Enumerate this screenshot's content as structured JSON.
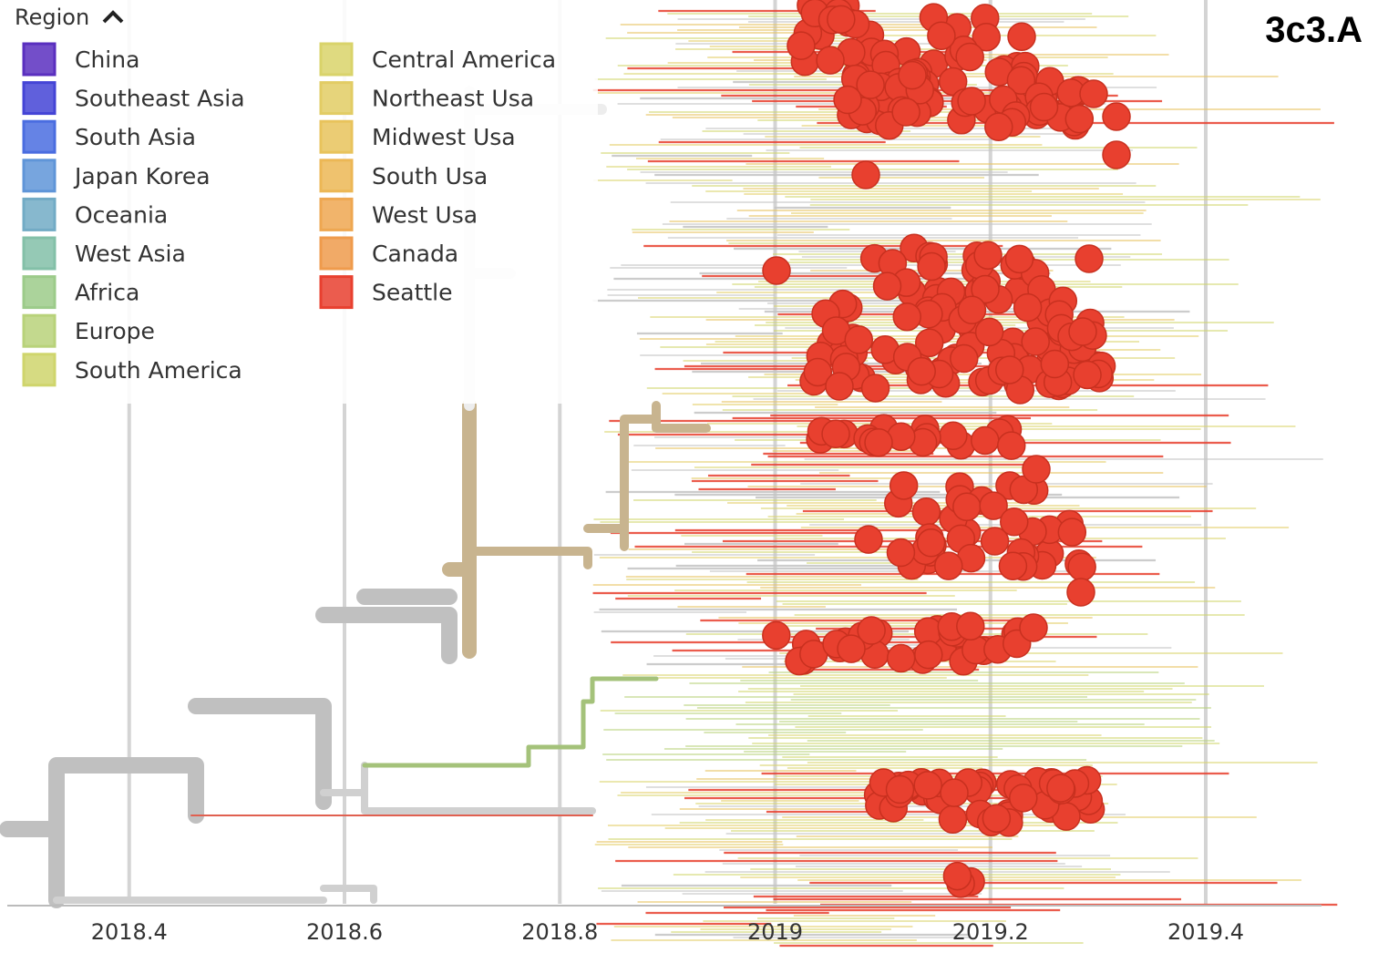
{
  "chart_data": {
    "type": "tree",
    "legend_title": "Region",
    "clade_label": "3c3.A",
    "xlim": [
      2018.28,
      2019.56
    ],
    "xticks": [
      2018.4,
      2018.6,
      2018.8,
      2019.0,
      2019.2,
      2019.4
    ],
    "grid": true,
    "legend": [
      {
        "name": "China",
        "color": "#5a2fbf"
      },
      {
        "name": "Southeast Asia",
        "color": "#4444d6"
      },
      {
        "name": "South Asia",
        "color": "#4a6de0"
      },
      {
        "name": "Japan Korea",
        "color": "#5f95d8"
      },
      {
        "name": "Oceania",
        "color": "#72abc5"
      },
      {
        "name": "West Asia",
        "color": "#83c0a8"
      },
      {
        "name": "Africa",
        "color": "#9ccb8a"
      },
      {
        "name": "Europe",
        "color": "#b8d27a"
      },
      {
        "name": "South America",
        "color": "#cfd56c"
      },
      {
        "name": "Central America",
        "color": "#d9d36a"
      },
      {
        "name": "Northeast Usa",
        "color": "#e2cc64"
      },
      {
        "name": "Midwest Usa",
        "color": "#e8c35c"
      },
      {
        "name": "South Usa",
        "color": "#ecb755"
      },
      {
        "name": "West Usa",
        "color": "#eea751"
      },
      {
        "name": "Canada",
        "color": "#ef9b4c"
      },
      {
        "name": "Seattle",
        "color": "#e8402f"
      }
    ]
  }
}
